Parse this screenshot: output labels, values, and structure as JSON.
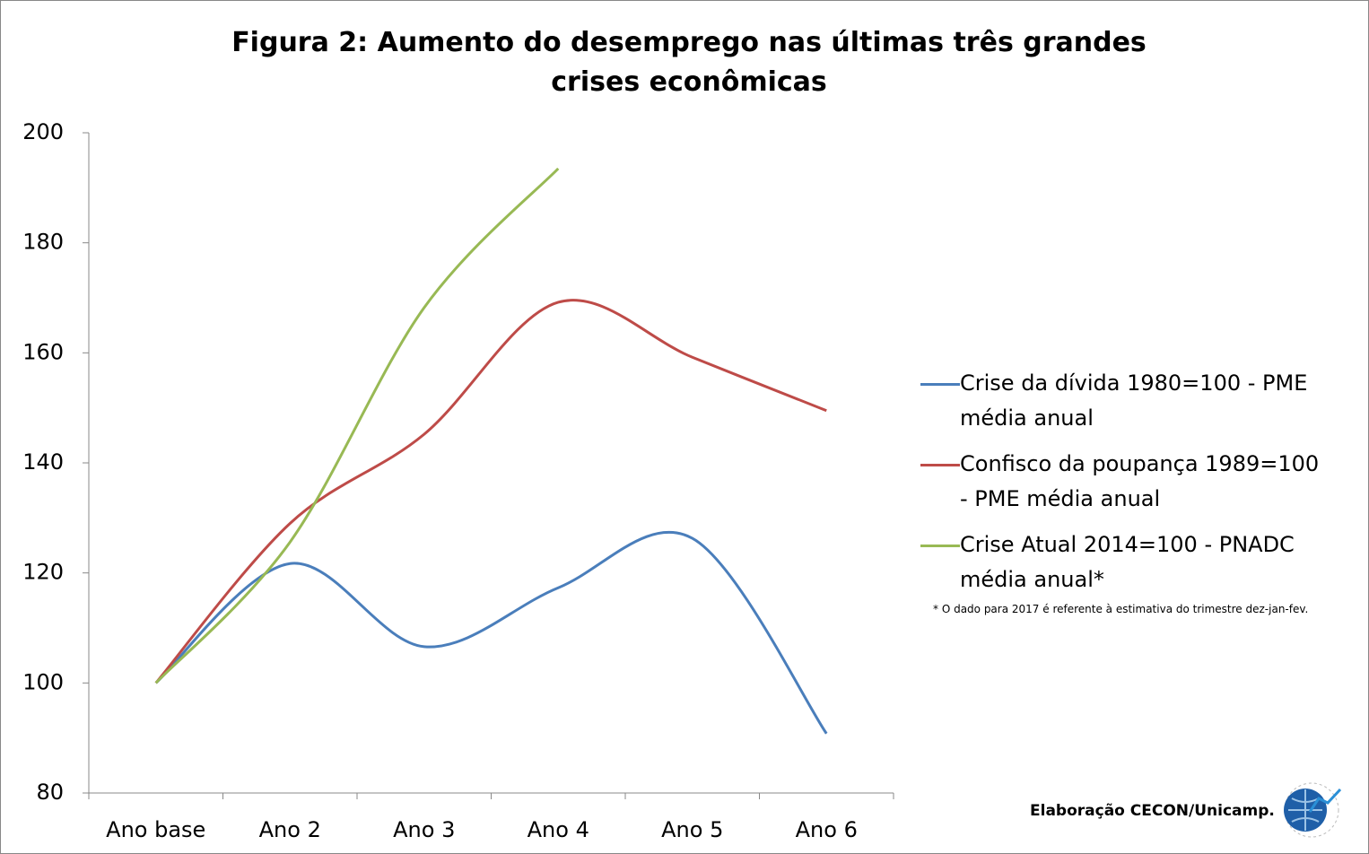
{
  "chart_data": {
    "type": "line",
    "title": "Figura 2: Aumento do desemprego nas últimas três grandes crises econômicas",
    "categories": [
      "Ano base",
      "Ano 2",
      "Ano 3",
      "Ano 4",
      "Ano 5",
      "Ano 6"
    ],
    "series": [
      {
        "name": "Crise da dívida 1980=100 - PME média anual",
        "color": "#4a7ebb",
        "values": [
          100,
          121.7,
          106.6,
          117.3,
          126.3,
          90.8
        ]
      },
      {
        "name": "Confisco da poupança 1989=100 - PME média anual",
        "color": "#be4b48",
        "values": [
          100,
          129,
          145.2,
          169.2,
          159.2,
          149.5
        ]
      },
      {
        "name": "Crise Atual 2014=100 - PNADC média anual*",
        "color": "#98b954",
        "values": [
          100,
          125.6,
          168.2,
          193.5,
          null,
          null
        ]
      }
    ],
    "ylim": [
      80,
      200
    ],
    "yticks": [
      80,
      100,
      120,
      140,
      160,
      180,
      200
    ],
    "legend": "right",
    "footnote": "* O dado para 2017 é referente à estimativa do trimestre dez-jan-fev.",
    "credit": "Elaboração CECON/Unicamp."
  }
}
